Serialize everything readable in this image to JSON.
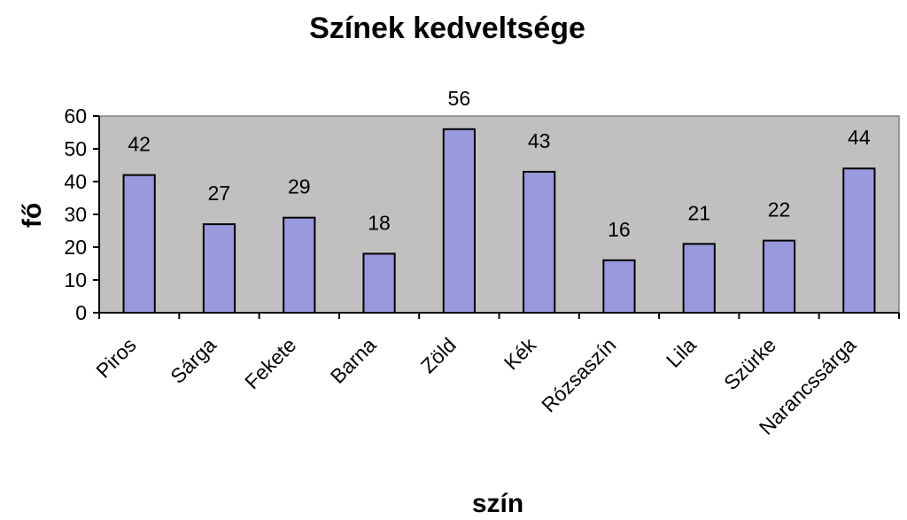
{
  "chart_data": {
    "type": "bar",
    "title": "Színek kedveltsége",
    "xlabel": "szín",
    "ylabel": "fő",
    "categories": [
      "Piros",
      "Sárga",
      "Fekete",
      "Barna",
      "Zöld",
      "Kék",
      "Rózsaszín",
      "Lila",
      "Szürke",
      "Narancssárga"
    ],
    "values": [
      42,
      27,
      29,
      18,
      56,
      43,
      16,
      21,
      22,
      44
    ],
    "ylim": [
      0,
      60
    ],
    "yticks": [
      "0",
      "10",
      "20",
      "30",
      "40",
      "50",
      "60"
    ],
    "grid": false,
    "legend": "none",
    "data_labels": true,
    "colors": {
      "bar_fill": "#9999dd",
      "bar_stroke": "#000000",
      "plot_background": "#c0c0c0"
    }
  }
}
